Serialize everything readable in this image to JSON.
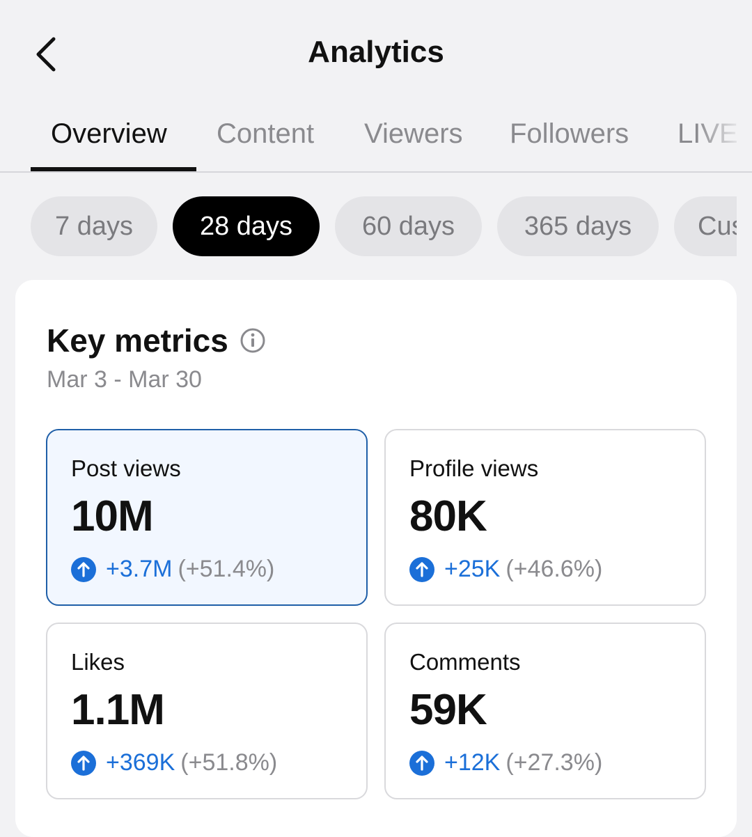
{
  "header": {
    "title": "Analytics",
    "back_icon": "chevron-left-icon"
  },
  "tabs": [
    {
      "label": "Overview",
      "active": true
    },
    {
      "label": "Content",
      "active": false
    },
    {
      "label": "Viewers",
      "active": false
    },
    {
      "label": "Followers",
      "active": false
    },
    {
      "label": "LIVE",
      "active": false
    }
  ],
  "ranges": [
    {
      "label": "7 days",
      "active": false
    },
    {
      "label": "28 days",
      "active": true
    },
    {
      "label": "60 days",
      "active": false
    },
    {
      "label": "365 days",
      "active": false
    },
    {
      "label": "Custom",
      "active": false
    }
  ],
  "key_metrics": {
    "title": "Key metrics",
    "info_icon": "info-icon",
    "date_range": "Mar 3 - Mar 30",
    "metrics": [
      {
        "label": "Post views",
        "value": "10M",
        "delta": "+3.7M",
        "percent": "(+51.4%)",
        "selected": true
      },
      {
        "label": "Profile views",
        "value": "80K",
        "delta": "+25K",
        "percent": "(+46.6%)",
        "selected": false
      },
      {
        "label": "Likes",
        "value": "1.1M",
        "delta": "+369K",
        "percent": "(+51.8%)",
        "selected": false
      },
      {
        "label": "Comments",
        "value": "59K",
        "delta": "+12K",
        "percent": "(+27.3%)",
        "selected": false
      }
    ]
  },
  "colors": {
    "accent_blue": "#1b6fd8",
    "selected_border": "#1f5fa8",
    "chip_active": "#000000"
  }
}
